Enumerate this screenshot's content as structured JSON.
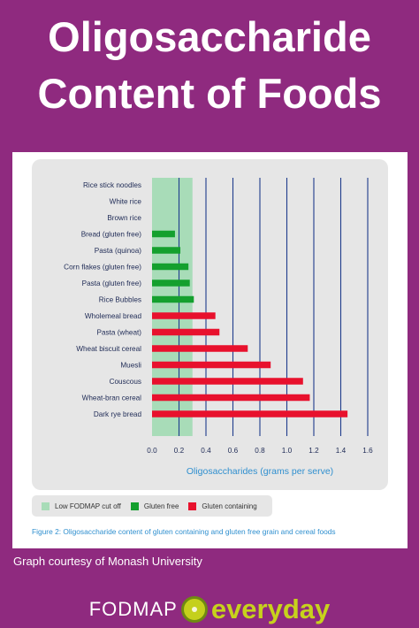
{
  "title": {
    "line1": "Oligosaccharide",
    "line2": "Content of Foods"
  },
  "chart_data": {
    "type": "bar",
    "orientation": "horizontal",
    "categories": [
      "Rice stick noodles",
      "White rice",
      "Brown rice",
      "Bread (gluten free)",
      "Pasta (quinoa)",
      "Corn flakes (gluten free)",
      "Pasta (gluten free)",
      "Rice Bubbles",
      "Wholemeal bread",
      "Pasta (wheat)",
      "Wheat biscuit cereal",
      "Muesli",
      "Couscous",
      "Wheat-bran cereal",
      "Dark rye bread"
    ],
    "values": [
      0,
      0,
      0,
      0.17,
      0.21,
      0.27,
      0.28,
      0.31,
      0.47,
      0.5,
      0.71,
      0.88,
      1.12,
      1.17,
      1.45
    ],
    "groups": [
      "gluten free",
      "gluten free",
      "gluten free",
      "gluten free",
      "gluten free",
      "gluten free",
      "gluten free",
      "gluten free",
      "gluten containing",
      "gluten containing",
      "gluten containing",
      "gluten containing",
      "gluten containing",
      "gluten containing",
      "gluten containing"
    ],
    "threshold": {
      "label": "Low FODMAP cut off",
      "value": 0.3
    },
    "xticks": [
      "0.0",
      "0.2",
      "0.4",
      "0.6",
      "0.8",
      "1.0",
      "1.2",
      "1.4",
      "1.6"
    ],
    "xlim": [
      0,
      1.6
    ],
    "xlabel": "Oligosaccharides (grams per serve)",
    "legend": [
      {
        "label": "Low FODMAP cut off",
        "color": "#a8dcb8"
      },
      {
        "label": "Gluten free",
        "color": "#14a02e"
      },
      {
        "label": "Gluten containing",
        "color": "#e8112d"
      }
    ],
    "legend_position": "bottom-left",
    "grid": true,
    "gridline_color": "#1f3c8c"
  },
  "caption": "Figure 2: Oligosaccharide content of gluten containing and gluten free grain and cereal foods",
  "credit": "Graph courtesy of Monash University",
  "brand": {
    "part1": "FODMAP",
    "part2": "everyday"
  }
}
